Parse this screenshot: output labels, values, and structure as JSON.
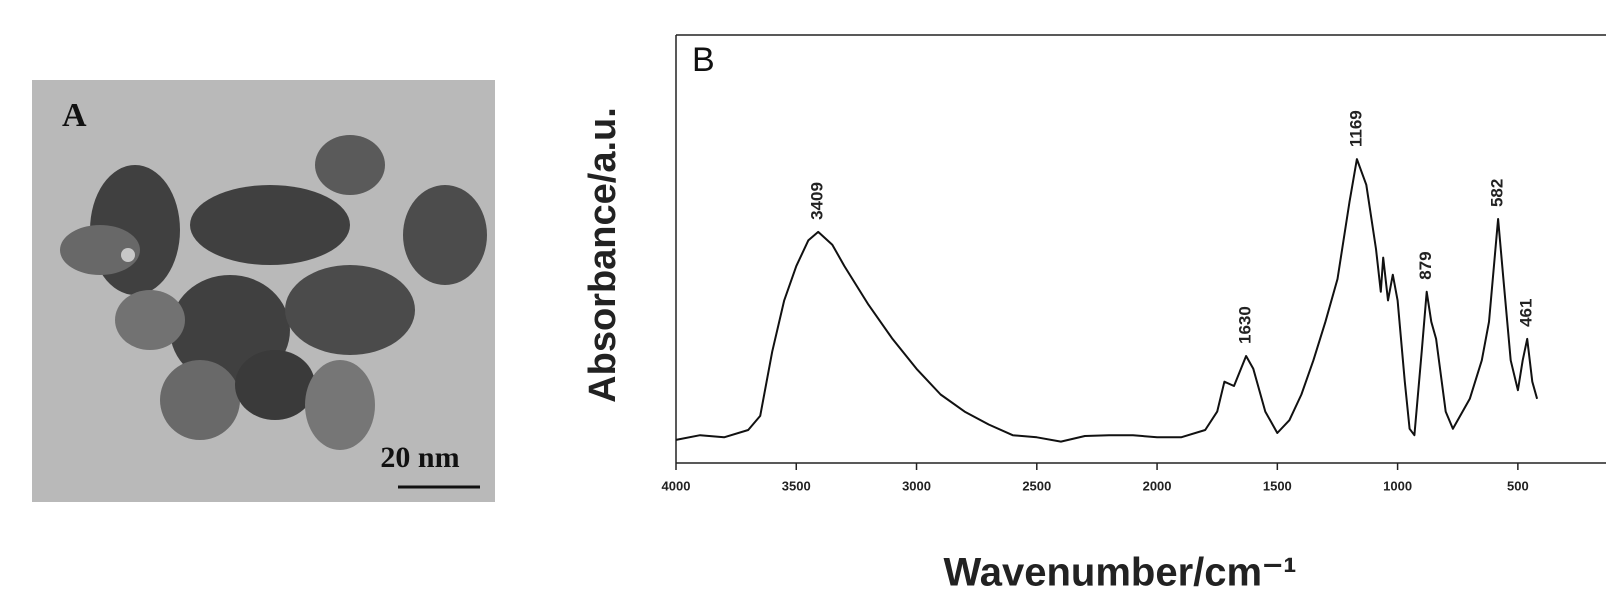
{
  "panel_a": {
    "label": "A",
    "scale_bar": "20 nm"
  },
  "chart_data": {
    "type": "line",
    "panel_label": "B",
    "y_label": "Absorbance/a.u.",
    "x_label": "Wavenumber/cm⁻¹",
    "x": [
      4000,
      3900,
      3800,
      3700,
      3650,
      3600,
      3550,
      3500,
      3450,
      3409,
      3350,
      3300,
      3200,
      3100,
      3000,
      2900,
      2800,
      2700,
      2600,
      2500,
      2400,
      2300,
      2200,
      2100,
      2000,
      1900,
      1800,
      1750,
      1720,
      1680,
      1630,
      1600,
      1550,
      1500,
      1450,
      1400,
      1350,
      1300,
      1250,
      1200,
      1169,
      1130,
      1090,
      1070,
      1060,
      1040,
      1020,
      1000,
      970,
      950,
      930,
      900,
      879,
      860,
      840,
      800,
      770,
      700,
      650,
      620,
      590,
      582,
      560,
      530,
      500,
      480,
      461,
      440,
      420
    ],
    "values": [
      5.4,
      6.5,
      6,
      7.7,
      11,
      26,
      38,
      46,
      52,
      54,
      51,
      46,
      37,
      29,
      22,
      16,
      12,
      9,
      6.5,
      6,
      5,
      6.3,
      6.5,
      6.5,
      6,
      6,
      7.7,
      12,
      19,
      18,
      25,
      22,
      12,
      7,
      10,
      16,
      24,
      33,
      43,
      61,
      71,
      65,
      50,
      40,
      48,
      38,
      44,
      38,
      19,
      8,
      6.5,
      26,
      40,
      33,
      29,
      12,
      8,
      15,
      24,
      33,
      52,
      57,
      43,
      24,
      17,
      24,
      29,
      19,
      15
    ],
    "color": "#111111",
    "xlim": [
      4000,
      250
    ],
    "ylim": [
      0,
      100
    ],
    "xticks": [
      4000,
      3500,
      3000,
      2500,
      2000,
      1500,
      1000,
      500
    ],
    "annotations": [
      {
        "label": "3409",
        "x": 3409,
        "y": 54
      },
      {
        "label": "1630",
        "x": 1630,
        "y": 25
      },
      {
        "label": "1169",
        "x": 1169,
        "y": 71
      },
      {
        "label": "879",
        "x": 879,
        "y": 40
      },
      {
        "label": "582",
        "x": 582,
        "y": 57
      },
      {
        "label": "461",
        "x": 461,
        "y": 29
      }
    ]
  }
}
